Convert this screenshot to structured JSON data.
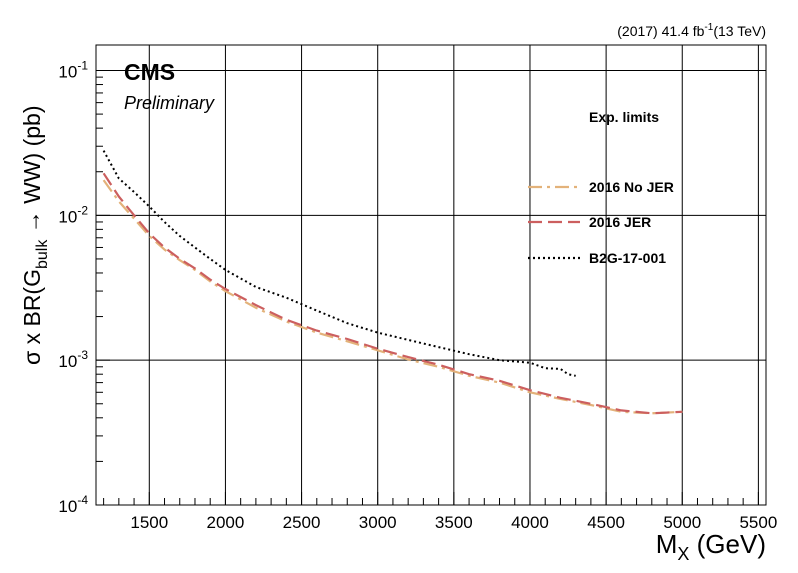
{
  "chart_data": {
    "type": "line",
    "lumi": {
      "prefix": "(2017) 41.4 fb",
      "sup": "-1",
      "suffix": "(13 TeV)"
    },
    "experiment": "CMS",
    "status": "Preliminary",
    "xlabel": {
      "main": "M",
      "sub": "X",
      "rest": " (GeV)"
    },
    "ylabel": {
      "pre": "σ x BR(G",
      "sub": "bulk",
      "post": " → WW) (pb)"
    },
    "xlim": [
      1150,
      5550
    ],
    "ylim": [
      0.0001,
      0.15
    ],
    "yscale": "log",
    "grid": true,
    "x_ticks": [
      1500,
      2000,
      2500,
      3000,
      3500,
      4000,
      4500,
      5000,
      5500
    ],
    "y_ticks": [
      {
        "value": 0.1,
        "base": "10",
        "exp": "-1"
      },
      {
        "value": 0.01,
        "base": "10",
        "exp": "-2"
      },
      {
        "value": 0.001,
        "base": "10",
        "exp": "-3"
      },
      {
        "value": 0.0001,
        "base": "10",
        "exp": "-4"
      }
    ],
    "legend_title": "Exp. limits",
    "legend_position": "top-right",
    "series": [
      {
        "name": "2016 No JER",
        "color": "#e3b27a",
        "dash": "14,5,3,5",
        "x": [
          1200,
          1300,
          1400,
          1500,
          1600,
          1700,
          1800,
          1900,
          2000,
          2200,
          2400,
          2600,
          2800,
          3000,
          3200,
          3400,
          3600,
          3800,
          4000,
          4200,
          4400,
          4600,
          4800,
          5000
        ],
        "y": [
          0.0175,
          0.0125,
          0.0095,
          0.0072,
          0.0058,
          0.0049,
          0.0042,
          0.0035,
          0.003,
          0.0023,
          0.00185,
          0.00155,
          0.00135,
          0.00117,
          0.00101,
          0.0009,
          0.00078,
          0.0007,
          0.0006,
          0.00054,
          0.00049,
          0.00044,
          0.00043,
          0.00044
        ]
      },
      {
        "name": "2016 JER",
        "color": "#cc5f5f",
        "dash": "14,6",
        "x": [
          1200,
          1300,
          1400,
          1500,
          1600,
          1700,
          1800,
          1900,
          2000,
          2200,
          2400,
          2600,
          2800,
          3000,
          3200,
          3400,
          3600,
          3800,
          4000,
          4200,
          4400,
          4600,
          4800,
          5000
        ],
        "y": [
          0.0195,
          0.0135,
          0.01,
          0.0075,
          0.006,
          0.005,
          0.0043,
          0.0036,
          0.0031,
          0.0024,
          0.0019,
          0.0016,
          0.0014,
          0.0012,
          0.00105,
          0.00093,
          0.0008,
          0.00072,
          0.00062,
          0.00055,
          0.0005,
          0.00045,
          0.00043,
          0.00044
        ]
      },
      {
        "name": "B2G-17-001",
        "color": "#000000",
        "dash": "2,3",
        "x": [
          1200,
          1300,
          1400,
          1500,
          1600,
          1700,
          1800,
          1900,
          2000,
          2200,
          2400,
          2600,
          2800,
          3000,
          3200,
          3400,
          3600,
          3800,
          4000,
          4100,
          4200,
          4250,
          4300
        ],
        "y": [
          0.028,
          0.018,
          0.0145,
          0.0115,
          0.009,
          0.0072,
          0.006,
          0.005,
          0.0042,
          0.0032,
          0.0027,
          0.0022,
          0.0018,
          0.00155,
          0.00138,
          0.00123,
          0.0011,
          0.001,
          0.00096,
          0.00088,
          0.00087,
          0.0008,
          0.00078
        ]
      }
    ]
  }
}
